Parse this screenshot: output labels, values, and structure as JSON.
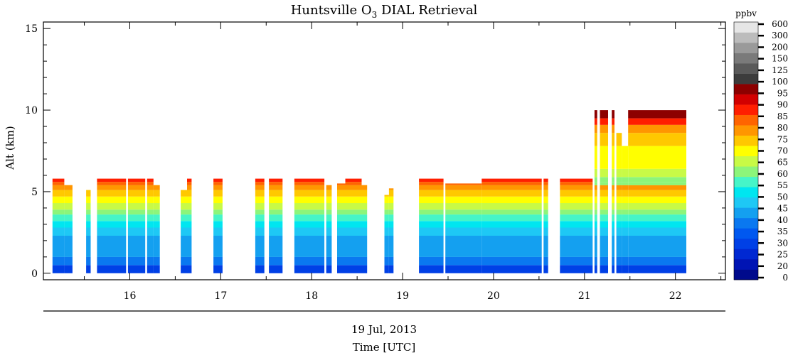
{
  "chart_data": {
    "type": "heatmap",
    "title_main": "Huntsville O",
    "title_sub": "3",
    "title_rest": " DIAL Retrieval",
    "ylabel": "Alt (km)",
    "xlabel": "Time [UTC]",
    "date_label": "19 Jul, 2013",
    "xlim": [
      15.05,
      22.55
    ],
    "ylim": [
      -0.4,
      15.4
    ],
    "x_ticks": [
      16,
      17,
      18,
      19,
      20,
      21,
      22
    ],
    "x_tick_labels": [
      "16",
      "17",
      "18",
      "19",
      "20",
      "21",
      "22"
    ],
    "y_ticks": [
      0,
      5,
      10,
      15
    ],
    "y_tick_labels": [
      "0",
      "5",
      "10",
      "15"
    ],
    "colorbar": {
      "unit": "ppbv",
      "levels": [
        "0",
        "20",
        "25",
        "30",
        "35",
        "40",
        "45",
        "50",
        "55",
        "60",
        "65",
        "70",
        "75",
        "80",
        "85",
        "90",
        "95",
        "100",
        "125",
        "150",
        "200",
        "300",
        "600"
      ],
      "colors": [
        "#000a8c",
        "#0014b4",
        "#0028d2",
        "#0040e6",
        "#0058f0",
        "#0a78f0",
        "#14a0f0",
        "#1ec8f5",
        "#00e6f0",
        "#46f5c8",
        "#8cf57a",
        "#c8fa46",
        "#ffff00",
        "#ffc800",
        "#ff9600",
        "#ff6400",
        "#ff1e00",
        "#d20000",
        "#8c0000",
        "#3c3c3c",
        "#5a5a5a",
        "#7a7a7a",
        "#9a9a9a",
        "#bcbcbc",
        "#e6e6e6"
      ]
    },
    "profile_bands": [
      {
        "bottom_km": 0.0,
        "ppbv": 28
      },
      {
        "bottom_km": 0.5,
        "ppbv": 36
      },
      {
        "bottom_km": 1.0,
        "ppbv": 40
      },
      {
        "bottom_km": 1.8,
        "ppbv": 43
      },
      {
        "bottom_km": 2.3,
        "ppbv": 47
      },
      {
        "bottom_km": 2.8,
        "ppbv": 50
      },
      {
        "bottom_km": 3.2,
        "ppbv": 57
      },
      {
        "bottom_km": 3.6,
        "ppbv": 62
      },
      {
        "bottom_km": 3.9,
        "ppbv": 67
      },
      {
        "bottom_km": 4.3,
        "ppbv": 72
      },
      {
        "bottom_km": 4.7,
        "ppbv": 76
      },
      {
        "bottom_km": 5.1,
        "ppbv": 81
      },
      {
        "bottom_km": 5.4,
        "ppbv": 88
      },
      {
        "bottom_km": 5.6,
        "ppbv": 94
      }
    ],
    "segments": [
      {
        "t0": 15.15,
        "t1": 15.28,
        "top_km": 5.8
      },
      {
        "t0": 15.28,
        "t1": 15.37,
        "top_km": 5.4
      },
      {
        "t0": 15.52,
        "t1": 15.57,
        "top_km": 5.1
      },
      {
        "t0": 15.64,
        "t1": 15.96,
        "top_km": 5.8
      },
      {
        "t0": 15.98,
        "t1": 16.17,
        "top_km": 5.8
      },
      {
        "t0": 16.19,
        "t1": 16.26,
        "top_km": 5.8
      },
      {
        "t0": 16.26,
        "t1": 16.33,
        "top_km": 5.4
      },
      {
        "t0": 16.56,
        "t1": 16.63,
        "top_km": 5.1
      },
      {
        "t0": 16.63,
        "t1": 16.68,
        "top_km": 5.8
      },
      {
        "t0": 16.92,
        "t1": 17.02,
        "top_km": 5.8
      },
      {
        "t0": 17.38,
        "t1": 17.48,
        "top_km": 5.8
      },
      {
        "t0": 17.53,
        "t1": 17.68,
        "top_km": 5.8
      },
      {
        "t0": 17.81,
        "t1": 18.14,
        "top_km": 5.8
      },
      {
        "t0": 18.16,
        "t1": 18.22,
        "top_km": 5.4
      },
      {
        "t0": 18.28,
        "t1": 18.37,
        "top_km": 5.5
      },
      {
        "t0": 18.37,
        "t1": 18.55,
        "top_km": 5.8
      },
      {
        "t0": 18.55,
        "t1": 18.61,
        "top_km": 5.4
      },
      {
        "t0": 18.8,
        "t1": 18.85,
        "top_km": 4.8
      },
      {
        "t0": 18.85,
        "t1": 18.9,
        "top_km": 5.2
      },
      {
        "t0": 19.18,
        "t1": 19.45,
        "top_km": 5.8
      },
      {
        "t0": 19.47,
        "t1": 19.87,
        "top_km": 5.5
      },
      {
        "t0": 19.87,
        "t1": 20.53,
        "top_km": 5.8
      },
      {
        "t0": 20.55,
        "t1": 20.6,
        "top_km": 5.8
      },
      {
        "t0": 20.73,
        "t1": 21.09,
        "top_km": 5.8
      },
      {
        "t0": 21.11,
        "t1": 21.14,
        "top_km": 10.0
      },
      {
        "t0": 21.17,
        "t1": 21.26,
        "top_km": 10.0
      },
      {
        "t0": 21.3,
        "t1": 21.33,
        "top_km": 10.0
      },
      {
        "t0": 21.35,
        "t1": 21.41,
        "top_km": 8.6
      },
      {
        "t0": 21.41,
        "t1": 21.48,
        "top_km": 7.8
      },
      {
        "t0": 21.48,
        "t1": 22.12,
        "top_km": 10.0
      }
    ],
    "grid": false,
    "legend": "colorbar at right"
  }
}
